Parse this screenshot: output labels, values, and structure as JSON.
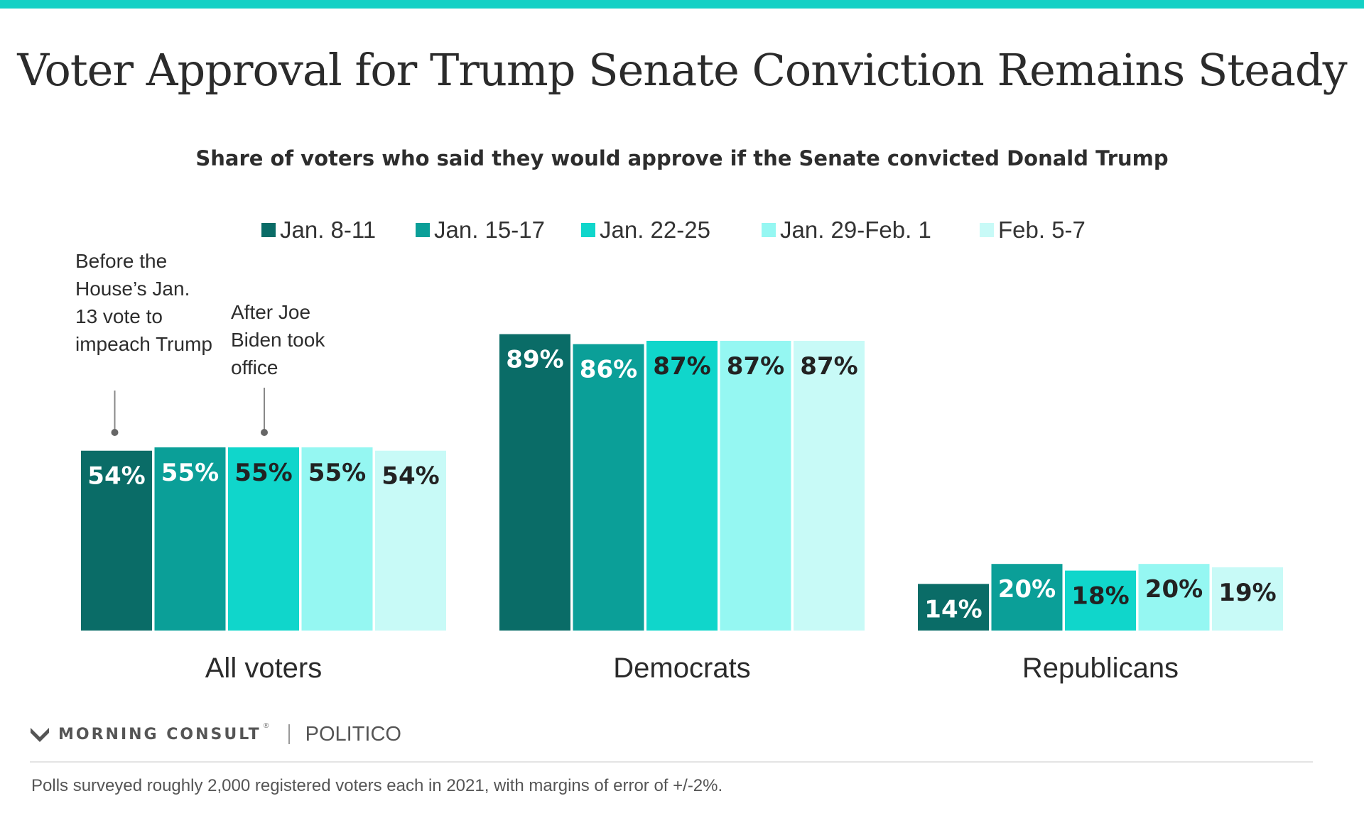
{
  "title": "Voter Approval for Trump Senate Conviction Remains Steady",
  "subtitle": "Share of voters who said they would approve if the Senate convicted Donald Trump",
  "colors": {
    "accent_bar": "#14d1c5",
    "series": [
      "#0a6c67",
      "#0b9f98",
      "#10d6cb",
      "#95f7f2",
      "#c8faf7"
    ],
    "label_on_dark": "#ffffff",
    "label_on_light": "#222222"
  },
  "annotations": [
    "Before the House’s Jan. 13 vote to impeach Trump",
    "After Joe Biden took office"
  ],
  "chart_data": {
    "type": "bar",
    "title": "Voter Approval for Trump Senate Conviction Remains Steady",
    "subtitle": "Share of voters who said they would approve if the Senate convicted Donald Trump",
    "categories": [
      "All voters",
      "Democrats",
      "Republicans"
    ],
    "series": [
      {
        "name": "Jan. 8-11",
        "values": [
          54,
          89,
          14
        ],
        "labels": [
          "54%",
          "89%",
          "14%"
        ]
      },
      {
        "name": "Jan. 15-17",
        "values": [
          55,
          86,
          20
        ],
        "labels": [
          "55%",
          "86%",
          "20%"
        ]
      },
      {
        "name": "Jan. 22-25",
        "values": [
          55,
          87,
          18
        ],
        "labels": [
          "55%",
          "87%",
          "18%"
        ]
      },
      {
        "name": "Jan. 29-Feb. 1",
        "values": [
          55,
          87,
          20
        ],
        "labels": [
          "55%",
          "87%",
          "20%"
        ]
      },
      {
        "name": "Feb. 5-7",
        "values": [
          54,
          87,
          19
        ],
        "labels": [
          "54%",
          "87%",
          "19%"
        ]
      }
    ],
    "ylim": [
      0,
      100
    ],
    "legend_position": "top",
    "grid": false,
    "xlabel": "",
    "ylabel": ""
  },
  "branding": {
    "morning_consult": "MORNING CONSULT",
    "trademark": "®",
    "politico": "POLITICO"
  },
  "footnote": "Polls surveyed roughly 2,000 registered voters each in 2021, with margins of error of +/-2%."
}
